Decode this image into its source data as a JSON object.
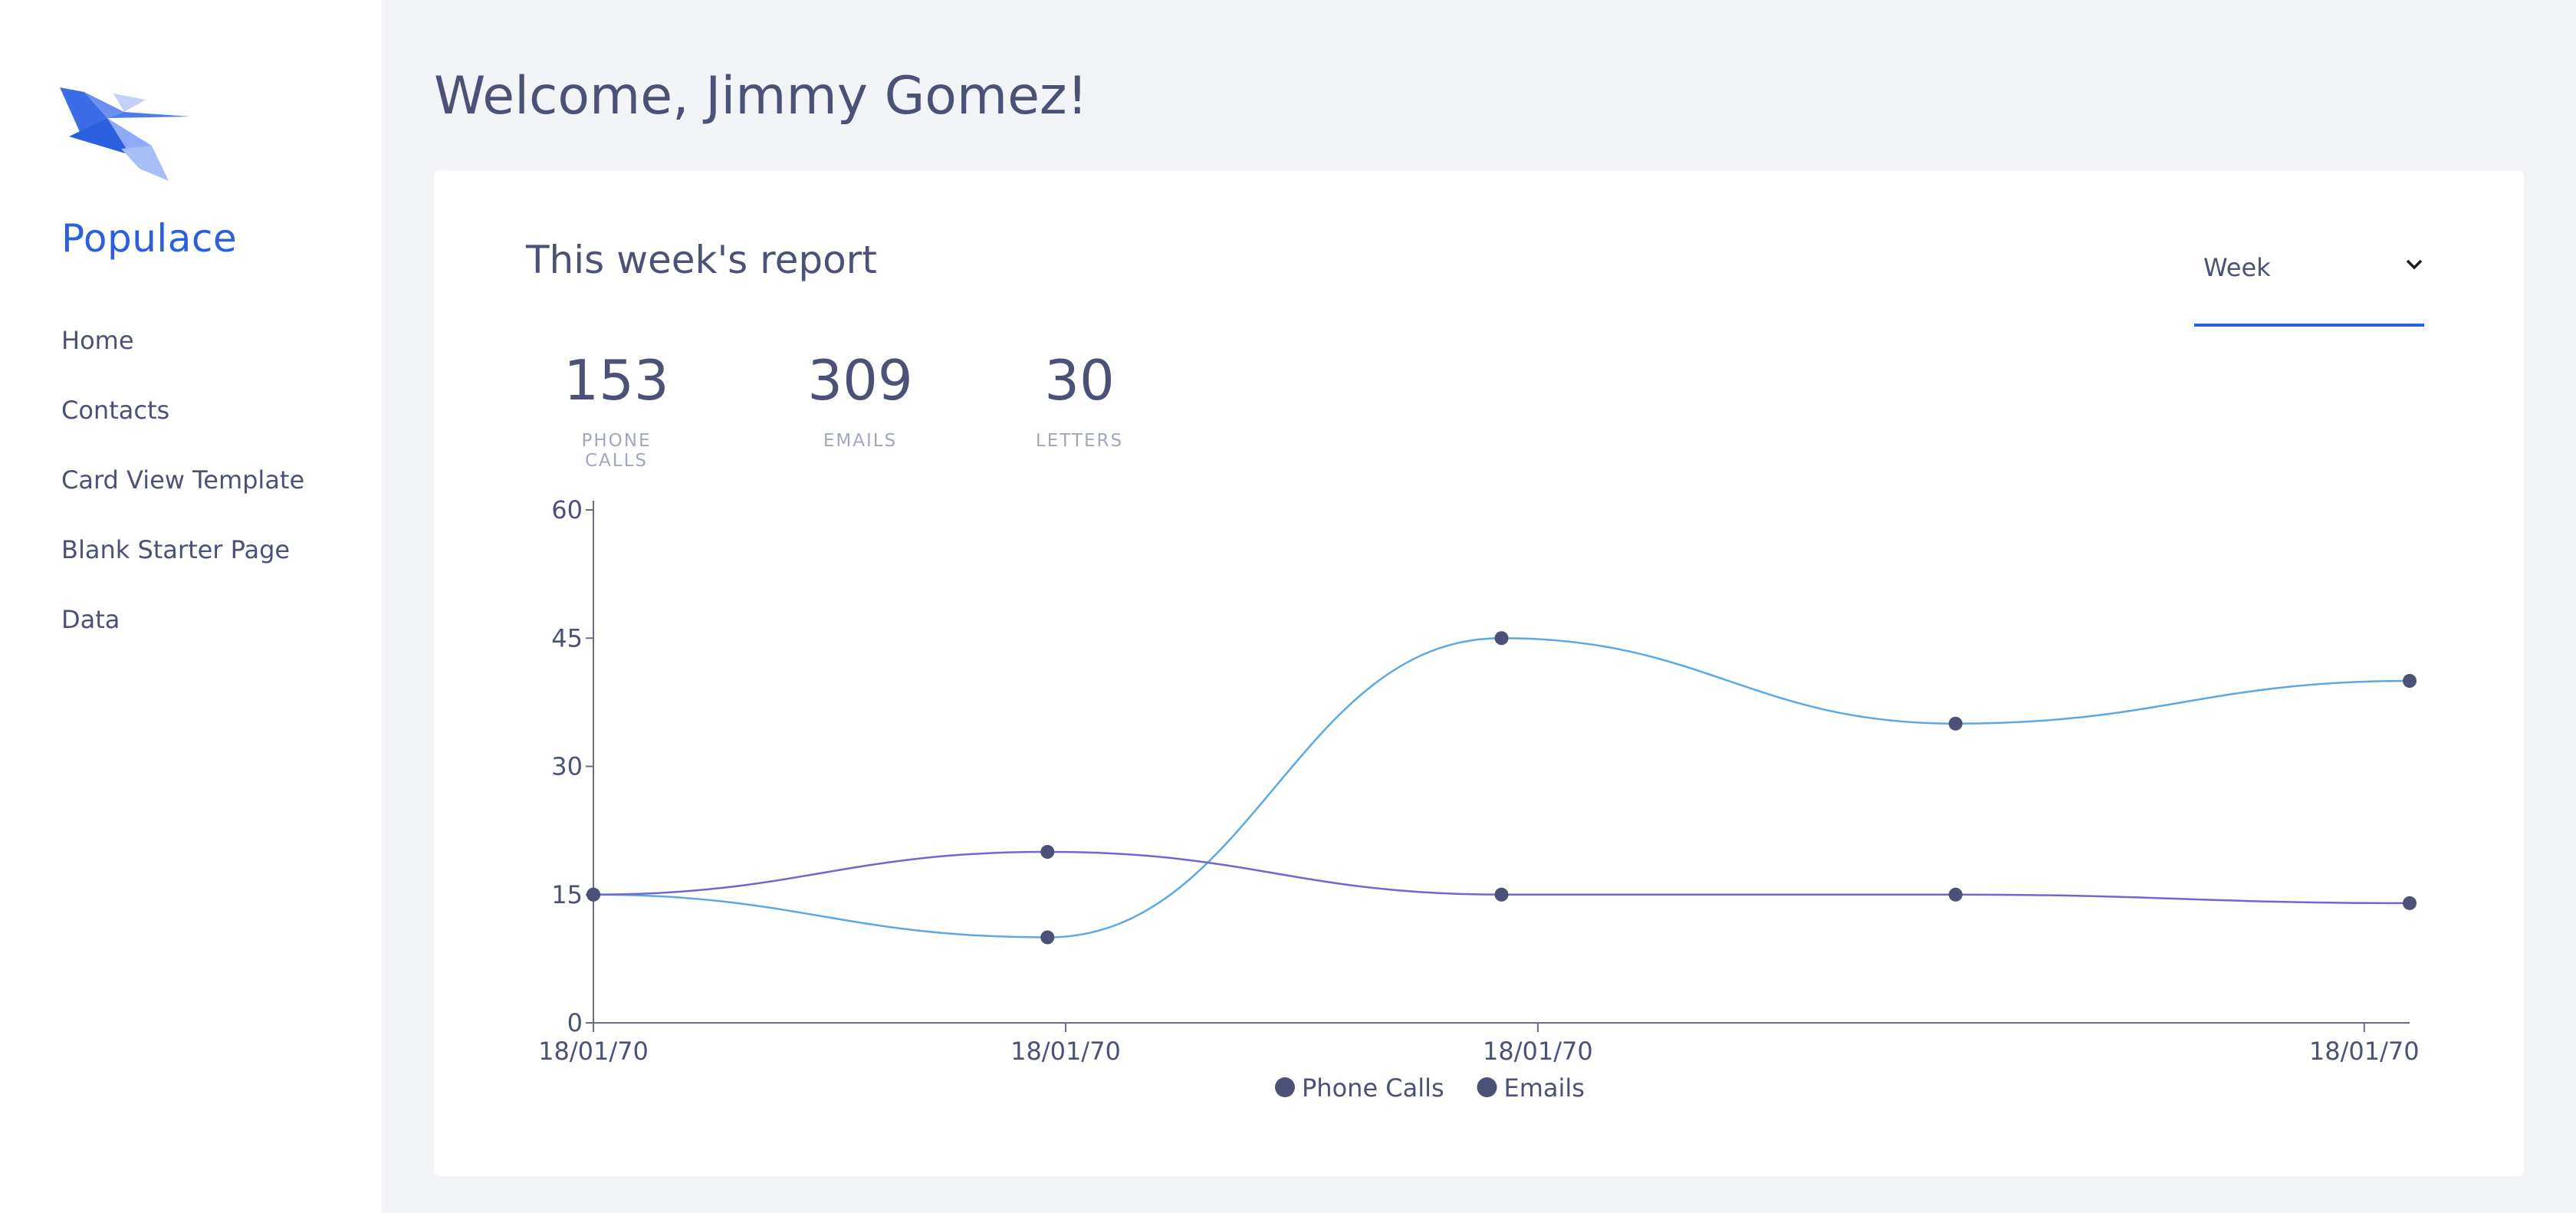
{
  "sidebar": {
    "brand": "Populace",
    "logo_icon": "bird-logo-icon",
    "nav": [
      {
        "label": "Home"
      },
      {
        "label": "Contacts"
      },
      {
        "label": "Card View Template"
      },
      {
        "label": "Blank Starter Page"
      },
      {
        "label": "Data"
      }
    ]
  },
  "header": {
    "welcome": "Welcome, Jimmy Gomez!"
  },
  "report": {
    "title": "This week's report",
    "period_select": {
      "value": "Week",
      "icon": "chevron-down-icon"
    },
    "stats": [
      {
        "value": "153",
        "label": "PHONE CALLS"
      },
      {
        "value": "309",
        "label": "EMAILS"
      },
      {
        "value": "30",
        "label": "LETTERS"
      }
    ]
  },
  "colors": {
    "accent": "#2a5fe0",
    "text": "#4b5177",
    "muted": "#a2a8bc",
    "background": "#f3f4f8",
    "phone_line": "#5aa9e6",
    "email_line": "#7166d6",
    "marker": "#4b5177"
  },
  "chart_data": {
    "type": "line",
    "title": "",
    "xlabel": "",
    "ylabel": "",
    "ylim": [
      0,
      60
    ],
    "yticks": [
      0,
      15,
      30,
      45,
      60
    ],
    "x": [
      0,
      1,
      2,
      3,
      4
    ],
    "xtick_labels": [
      {
        "x": 0,
        "label": "18/01/70"
      },
      {
        "x": 1.04,
        "label": "18/01/70"
      },
      {
        "x": 2.08,
        "label": "18/01/70"
      },
      {
        "x": 3.9,
        "label": "18/01/70"
      }
    ],
    "series": [
      {
        "name": "Phone Calls",
        "values": [
          15,
          10,
          45,
          35,
          40
        ]
      },
      {
        "name": "Emails",
        "values": [
          15,
          20,
          15,
          15,
          14
        ]
      }
    ],
    "legend": "bottom-center",
    "grid": false
  }
}
